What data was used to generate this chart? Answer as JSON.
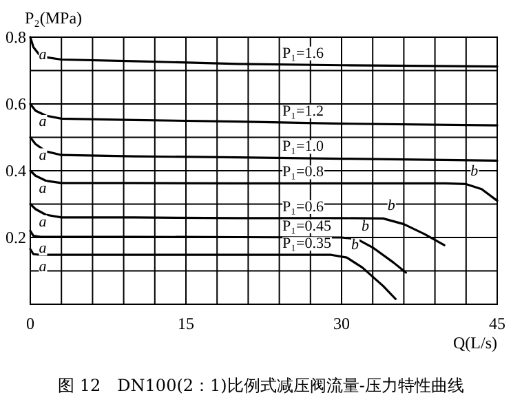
{
  "chart_data": {
    "type": "line",
    "xlabel": "Q(L/s)",
    "ylabel": "P₂(MPa)",
    "grid": true,
    "xlim": [
      0,
      45
    ],
    "ylim": [
      0,
      0.8
    ],
    "xticks": [
      0,
      {
        "value": 3,
        "label": null
      },
      {
        "value": 6,
        "label": null
      },
      {
        "value": 9,
        "label": null
      },
      {
        "value": 12,
        "label": null
      },
      15,
      {
        "value": 18,
        "label": null
      },
      {
        "value": 21,
        "label": null
      },
      {
        "value": 24,
        "label": null
      },
      {
        "value": 27,
        "label": null
      },
      30,
      {
        "value": 33,
        "label": null
      },
      {
        "value": 36,
        "label": null
      },
      {
        "value": 39,
        "label": null
      },
      {
        "value": 42,
        "label": null
      },
      45
    ],
    "yticks": [
      {
        "value": 0,
        "label": null
      },
      {
        "value": 0.1,
        "label": null
      },
      0.2,
      {
        "value": 0.3,
        "label": null
      },
      0.4,
      {
        "value": 0.5,
        "label": null
      },
      0.6,
      {
        "value": 0.7,
        "label": null
      },
      0.8
    ],
    "series": [
      {
        "name": "P₁=1.6",
        "color": "#000000",
        "x": [
          0,
          0.3,
          0.8,
          1.5,
          3,
          10,
          20,
          30,
          45
        ],
        "values": [
          0.8,
          0.77,
          0.75,
          0.74,
          0.733,
          0.728,
          0.72,
          0.716,
          0.712
        ]
      },
      {
        "name": "P₁=1.2",
        "color": "#000000",
        "x": [
          0,
          0.5,
          1.5,
          3,
          10,
          20,
          30,
          45
        ],
        "values": [
          0.6,
          0.58,
          0.565,
          0.556,
          0.552,
          0.547,
          0.541,
          0.536
        ]
      },
      {
        "name": "P₁=1.0",
        "color": "#000000",
        "x": [
          0,
          0.5,
          1.5,
          3,
          10,
          20,
          30,
          45
        ],
        "values": [
          0.5,
          0.48,
          0.458,
          0.447,
          0.443,
          0.44,
          0.436,
          0.43
        ]
      },
      {
        "name": "P₁=0.8",
        "color": "#000000",
        "x": [
          0,
          0.5,
          1.5,
          3,
          10,
          20,
          30,
          40,
          42,
          43.5,
          45
        ],
        "values": [
          0.4,
          0.385,
          0.37,
          0.363,
          0.363,
          0.362,
          0.362,
          0.362,
          0.36,
          0.345,
          0.31
        ]
      },
      {
        "name": "P₁=0.6",
        "color": "#000000",
        "x": [
          0,
          0.5,
          1.5,
          3,
          10,
          20,
          30,
          34,
          36,
          38,
          39.9
        ],
        "values": [
          0.3,
          0.285,
          0.268,
          0.26,
          0.26,
          0.258,
          0.258,
          0.257,
          0.24,
          0.21,
          0.177
        ]
      },
      {
        "name": "P₁=0.45",
        "color": "#000000",
        "x": [
          0,
          0.3,
          1,
          10,
          20,
          30,
          31.5,
          33,
          35,
          36.2
        ],
        "values": [
          0.22,
          0.205,
          0.202,
          0.202,
          0.201,
          0.2,
          0.195,
          0.17,
          0.125,
          0.095
        ]
      },
      {
        "name": "P₁=0.35",
        "color": "#000000",
        "x": [
          0,
          0.3,
          1,
          10,
          20,
          29,
          30.5,
          32,
          34,
          35.2
        ],
        "values": [
          0.165,
          0.15,
          0.148,
          0.148,
          0.148,
          0.148,
          0.14,
          0.11,
          0.055,
          0.016
        ]
      }
    ],
    "annotations": [
      {
        "text": "a",
        "x": 0,
        "y": 0.8
      },
      {
        "text": "a",
        "x": 0,
        "y": 0.6
      },
      {
        "text": "a",
        "x": 0,
        "y": 0.5
      },
      {
        "text": "a",
        "x": 0,
        "y": 0.4
      },
      {
        "text": "a",
        "x": 0,
        "y": 0.3
      },
      {
        "text": "a",
        "x": 0,
        "y": 0.22
      },
      {
        "text": "a",
        "x": 0,
        "y": 0.165
      },
      {
        "text": "b",
        "x": 42,
        "y": 0.36
      },
      {
        "text": "b",
        "x": 34,
        "y": 0.257
      },
      {
        "text": "b",
        "x": 31.5,
        "y": 0.195
      },
      {
        "text": "b",
        "x": 30.5,
        "y": 0.14
      },
      "图 12　DN100(2：1)比例式减压阀流量-压力特性曲线"
    ]
  }
}
